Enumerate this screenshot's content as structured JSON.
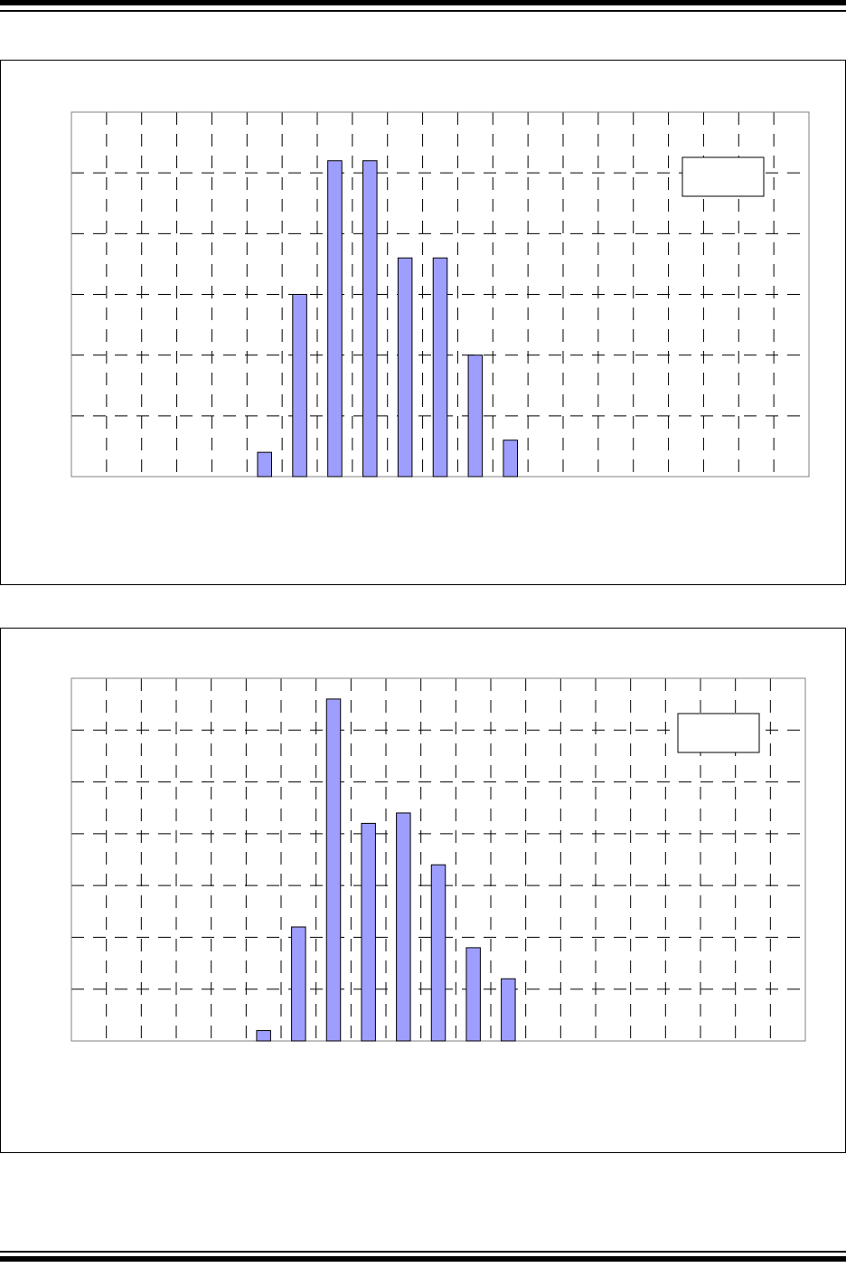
{
  "colors": {
    "bar_fill": "#9e9eff",
    "bar_stroke": "#000000",
    "grid": "#000000",
    "plot_border": "#808080"
  },
  "chart_data": [
    {
      "type": "bar",
      "title": "",
      "xlabel": "",
      "ylabel": "",
      "category_count": 21,
      "bar_positions": [
        5,
        6,
        7,
        8,
        9,
        10,
        11,
        12
      ],
      "values": [
        0.4,
        3.0,
        5.2,
        5.2,
        3.6,
        3.6,
        2.0,
        0.6
      ],
      "ylim": [
        0,
        6
      ],
      "grid": true,
      "legend": "top-right"
    },
    {
      "type": "bar",
      "title": "",
      "xlabel": "",
      "ylabel": "",
      "category_count": 21,
      "bar_positions": [
        5,
        6,
        7,
        8,
        9,
        10,
        11,
        12
      ],
      "values": [
        0.2,
        2.2,
        6.6,
        4.2,
        4.4,
        3.4,
        1.8,
        1.2
      ],
      "ylim": [
        0,
        7
      ],
      "grid": true,
      "legend": "top-right"
    }
  ]
}
